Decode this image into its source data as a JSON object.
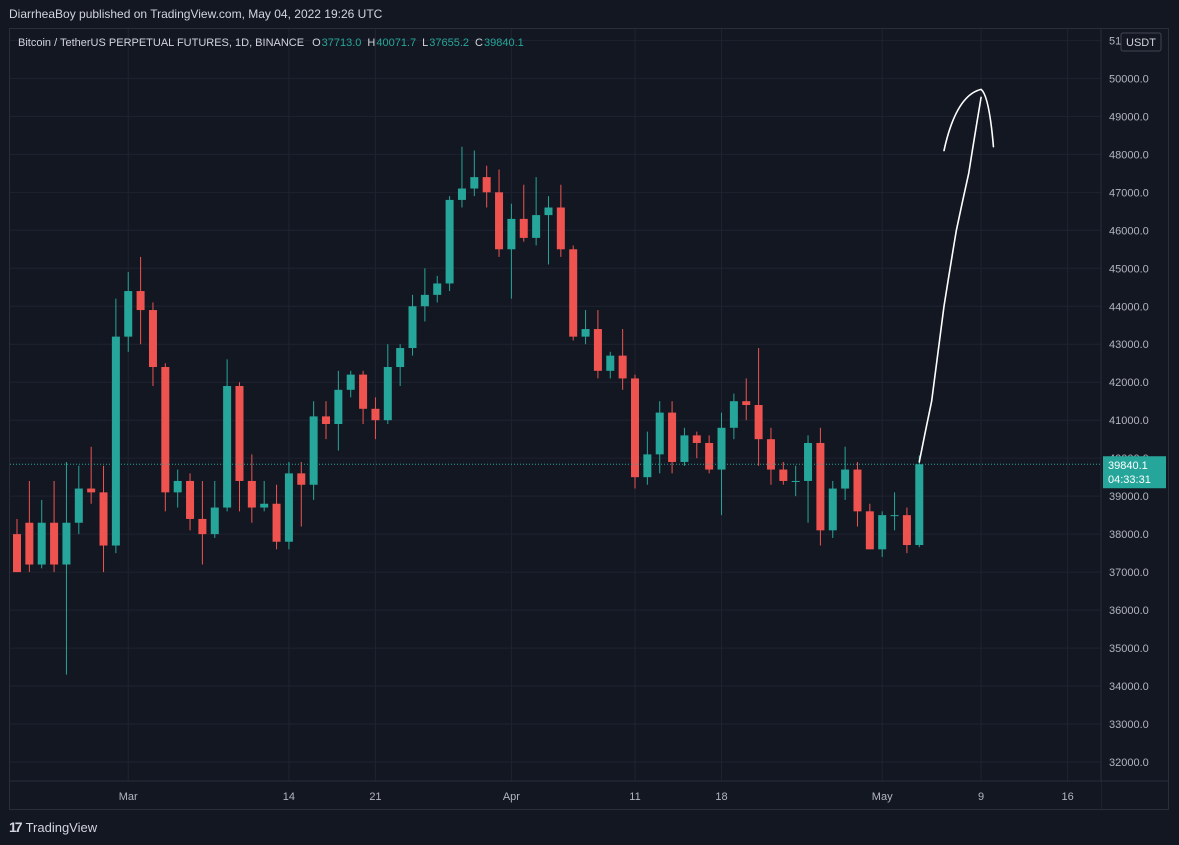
{
  "header": {
    "published": "DiarrheaBoy published on TradingView.com, May 04, 2022 19:26 UTC"
  },
  "legend": {
    "symbol": "Bitcoin / TetherUS PERPETUAL FUTURES, 1D, BINANCE",
    "o_label": "O",
    "o_value": "37713.0",
    "h_label": "H",
    "h_value": "40071.7",
    "l_label": "L",
    "l_value": "37655.2",
    "c_label": "C",
    "c_value": "39840.1"
  },
  "footer": {
    "brand": "TradingView",
    "logo_icon": "tradingview-logo-icon"
  },
  "colors": {
    "up": "#26a69a",
    "down": "#ef5350",
    "grid": "#1f2330",
    "axis_text": "#b2b5be",
    "bg": "#131722",
    "price_line": "#26a69a"
  },
  "chart_data": {
    "type": "candlestick",
    "title": "Bitcoin / TetherUS PERPETUAL FUTURES, 1D, BINANCE",
    "currency": "USDT",
    "last_price": "39840.1",
    "countdown": "04:33:31",
    "ylim": [
      31500,
      51300
    ],
    "y_ticks": [
      32000,
      33000,
      34000,
      35000,
      36000,
      37000,
      38000,
      39000,
      40000,
      41000,
      42000,
      43000,
      44000,
      45000,
      46000,
      47000,
      48000,
      49000,
      50000,
      51000
    ],
    "x_labels": [
      {
        "label": "Mar",
        "date": "2022-03-01"
      },
      {
        "label": "14",
        "date": "2022-03-14"
      },
      {
        "label": "21",
        "date": "2022-03-21"
      },
      {
        "label": "Apr",
        "date": "2022-04-01"
      },
      {
        "label": "11",
        "date": "2022-04-11"
      },
      {
        "label": "18",
        "date": "2022-04-18"
      },
      {
        "label": "May",
        "date": "2022-05-01"
      },
      {
        "label": "9",
        "date": "2022-05-09"
      },
      {
        "label": "16",
        "date": "2022-05-16"
      }
    ],
    "candles": [
      {
        "date": "2022-02-20",
        "o": 38000,
        "h": 38400,
        "l": 37000,
        "c": 37000
      },
      {
        "date": "2022-02-21",
        "o": 38300,
        "h": 39400,
        "l": 37000,
        "c": 37200
      },
      {
        "date": "2022-02-22",
        "o": 37200,
        "h": 38900,
        "l": 37100,
        "c": 38300
      },
      {
        "date": "2022-02-23",
        "o": 38300,
        "h": 39400,
        "l": 37000,
        "c": 37200
      },
      {
        "date": "2022-02-24",
        "o": 37200,
        "h": 39900,
        "l": 34300,
        "c": 38300
      },
      {
        "date": "2022-02-25",
        "o": 38300,
        "h": 39800,
        "l": 38000,
        "c": 39200
      },
      {
        "date": "2022-02-26",
        "o": 39200,
        "h": 40300,
        "l": 38800,
        "c": 39100
      },
      {
        "date": "2022-02-27",
        "o": 39100,
        "h": 39800,
        "l": 37000,
        "c": 37700
      },
      {
        "date": "2022-02-28",
        "o": 37700,
        "h": 44200,
        "l": 37500,
        "c": 43200
      },
      {
        "date": "2022-03-01",
        "o": 43200,
        "h": 44900,
        "l": 42800,
        "c": 44400
      },
      {
        "date": "2022-03-02",
        "o": 44400,
        "h": 45300,
        "l": 43000,
        "c": 43900
      },
      {
        "date": "2022-03-03",
        "o": 43900,
        "h": 44100,
        "l": 41900,
        "c": 42400
      },
      {
        "date": "2022-03-04",
        "o": 42400,
        "h": 42500,
        "l": 38600,
        "c": 39100
      },
      {
        "date": "2022-03-05",
        "o": 39100,
        "h": 39700,
        "l": 38700,
        "c": 39400
      },
      {
        "date": "2022-03-06",
        "o": 39400,
        "h": 39600,
        "l": 38100,
        "c": 38400
      },
      {
        "date": "2022-03-07",
        "o": 38400,
        "h": 39400,
        "l": 37200,
        "c": 38000
      },
      {
        "date": "2022-03-08",
        "o": 38000,
        "h": 39400,
        "l": 37900,
        "c": 38700
      },
      {
        "date": "2022-03-09",
        "o": 38700,
        "h": 42600,
        "l": 38600,
        "c": 41900
      },
      {
        "date": "2022-03-10",
        "o": 41900,
        "h": 42000,
        "l": 38600,
        "c": 39400
      },
      {
        "date": "2022-03-11",
        "o": 39400,
        "h": 40100,
        "l": 38300,
        "c": 38700
      },
      {
        "date": "2022-03-12",
        "o": 38700,
        "h": 39400,
        "l": 38600,
        "c": 38800
      },
      {
        "date": "2022-03-13",
        "o": 38800,
        "h": 39300,
        "l": 37600,
        "c": 37800
      },
      {
        "date": "2022-03-14",
        "o": 37800,
        "h": 39900,
        "l": 37600,
        "c": 39600
      },
      {
        "date": "2022-03-15",
        "o": 39600,
        "h": 39900,
        "l": 38200,
        "c": 39300
      },
      {
        "date": "2022-03-16",
        "o": 39300,
        "h": 41500,
        "l": 38900,
        "c": 41100
      },
      {
        "date": "2022-03-17",
        "o": 41100,
        "h": 41500,
        "l": 40500,
        "c": 40900
      },
      {
        "date": "2022-03-18",
        "o": 40900,
        "h": 42300,
        "l": 40200,
        "c": 41800
      },
      {
        "date": "2022-03-19",
        "o": 41800,
        "h": 42300,
        "l": 41600,
        "c": 42200
      },
      {
        "date": "2022-03-20",
        "o": 42200,
        "h": 42300,
        "l": 40900,
        "c": 41300
      },
      {
        "date": "2022-03-21",
        "o": 41300,
        "h": 41600,
        "l": 40500,
        "c": 41000
      },
      {
        "date": "2022-03-22",
        "o": 41000,
        "h": 43000,
        "l": 40900,
        "c": 42400
      },
      {
        "date": "2022-03-23",
        "o": 42400,
        "h": 43000,
        "l": 41900,
        "c": 42900
      },
      {
        "date": "2022-03-24",
        "o": 42900,
        "h": 44300,
        "l": 42700,
        "c": 44000
      },
      {
        "date": "2022-03-25",
        "o": 44000,
        "h": 45000,
        "l": 43600,
        "c": 44300
      },
      {
        "date": "2022-03-26",
        "o": 44300,
        "h": 44800,
        "l": 44100,
        "c": 44600
      },
      {
        "date": "2022-03-27",
        "o": 44600,
        "h": 46900,
        "l": 44400,
        "c": 46800
      },
      {
        "date": "2022-03-28",
        "o": 46800,
        "h": 48200,
        "l": 46600,
        "c": 47100
      },
      {
        "date": "2022-03-29",
        "o": 47100,
        "h": 48100,
        "l": 46900,
        "c": 47400
      },
      {
        "date": "2022-03-30",
        "o": 47400,
        "h": 47700,
        "l": 46600,
        "c": 47000
      },
      {
        "date": "2022-03-31",
        "o": 47000,
        "h": 47600,
        "l": 45300,
        "c": 45500
      },
      {
        "date": "2022-04-01",
        "o": 45500,
        "h": 46700,
        "l": 44200,
        "c": 46300
      },
      {
        "date": "2022-04-02",
        "o": 46300,
        "h": 47200,
        "l": 45700,
        "c": 45800
      },
      {
        "date": "2022-04-03",
        "o": 45800,
        "h": 47400,
        "l": 45600,
        "c": 46400
      },
      {
        "date": "2022-04-04",
        "o": 46400,
        "h": 46900,
        "l": 45100,
        "c": 46600
      },
      {
        "date": "2022-04-05",
        "o": 46600,
        "h": 47200,
        "l": 45300,
        "c": 45500
      },
      {
        "date": "2022-04-06",
        "o": 45500,
        "h": 45600,
        "l": 43100,
        "c": 43200
      },
      {
        "date": "2022-04-07",
        "o": 43200,
        "h": 43900,
        "l": 43000,
        "c": 43400
      },
      {
        "date": "2022-04-08",
        "o": 43400,
        "h": 43900,
        "l": 42100,
        "c": 42300
      },
      {
        "date": "2022-04-09",
        "o": 42300,
        "h": 42800,
        "l": 42100,
        "c": 42700
      },
      {
        "date": "2022-04-10",
        "o": 42700,
        "h": 43400,
        "l": 41800,
        "c": 42100
      },
      {
        "date": "2022-04-11",
        "o": 42100,
        "h": 42200,
        "l": 39200,
        "c": 39500
      },
      {
        "date": "2022-04-12",
        "o": 39500,
        "h": 40700,
        "l": 39300,
        "c": 40100
      },
      {
        "date": "2022-04-13",
        "o": 40100,
        "h": 41500,
        "l": 39600,
        "c": 41200
      },
      {
        "date": "2022-04-14",
        "o": 41200,
        "h": 41500,
        "l": 39600,
        "c": 39900
      },
      {
        "date": "2022-04-15",
        "o": 39900,
        "h": 40800,
        "l": 39800,
        "c": 40600
      },
      {
        "date": "2022-04-16",
        "o": 40600,
        "h": 40700,
        "l": 40000,
        "c": 40400
      },
      {
        "date": "2022-04-17",
        "o": 40400,
        "h": 40600,
        "l": 39600,
        "c": 39700
      },
      {
        "date": "2022-04-18",
        "o": 39700,
        "h": 41200,
        "l": 38500,
        "c": 40800
      },
      {
        "date": "2022-04-19",
        "o": 40800,
        "h": 41700,
        "l": 40500,
        "c": 41500
      },
      {
        "date": "2022-04-20",
        "o": 41500,
        "h": 42100,
        "l": 41000,
        "c": 41400
      },
      {
        "date": "2022-04-21",
        "o": 41400,
        "h": 42900,
        "l": 39800,
        "c": 40500
      },
      {
        "date": "2022-04-22",
        "o": 40500,
        "h": 40800,
        "l": 39300,
        "c": 39700
      },
      {
        "date": "2022-04-23",
        "o": 39700,
        "h": 39900,
        "l": 39300,
        "c": 39400
      },
      {
        "date": "2022-04-24",
        "o": 39400,
        "h": 39800,
        "l": 39000,
        "c": 39400
      },
      {
        "date": "2022-04-25",
        "o": 39400,
        "h": 40600,
        "l": 38300,
        "c": 40400
      },
      {
        "date": "2022-04-26",
        "o": 40400,
        "h": 40800,
        "l": 37700,
        "c": 38100
      },
      {
        "date": "2022-04-27",
        "o": 38100,
        "h": 39400,
        "l": 37900,
        "c": 39200
      },
      {
        "date": "2022-04-28",
        "o": 39200,
        "h": 40300,
        "l": 38900,
        "c": 39700
      },
      {
        "date": "2022-04-29",
        "o": 39700,
        "h": 39900,
        "l": 38200,
        "c": 38600
      },
      {
        "date": "2022-04-30",
        "o": 38600,
        "h": 38800,
        "l": 37600,
        "c": 37600
      },
      {
        "date": "2022-05-01",
        "o": 37600,
        "h": 38600,
        "l": 37400,
        "c": 38500
      },
      {
        "date": "2022-05-02",
        "o": 38500,
        "h": 39100,
        "l": 38100,
        "c": 38500
      },
      {
        "date": "2022-05-03",
        "o": 38500,
        "h": 38700,
        "l": 37500,
        "c": 37713
      },
      {
        "date": "2022-05-04",
        "o": 37713,
        "h": 40071.7,
        "l": 37655.2,
        "c": 39840.1
      }
    ],
    "annotation": {
      "type": "freehand-arrow",
      "path": [
        {
          "date": "2022-05-04",
          "y": 39900
        },
        {
          "date": "2022-05-05",
          "y": 41500
        },
        {
          "date": "2022-05-06",
          "y": 44000
        },
        {
          "date": "2022-05-07",
          "y": 46000
        },
        {
          "date": "2022-05-08",
          "y": 47500
        },
        {
          "date": "2022-05-09",
          "y": 49500
        }
      ],
      "head_left": {
        "date": "2022-05-06",
        "y": 48100
      },
      "head_right": {
        "date": "2022-05-10",
        "y": 48200
      }
    }
  }
}
